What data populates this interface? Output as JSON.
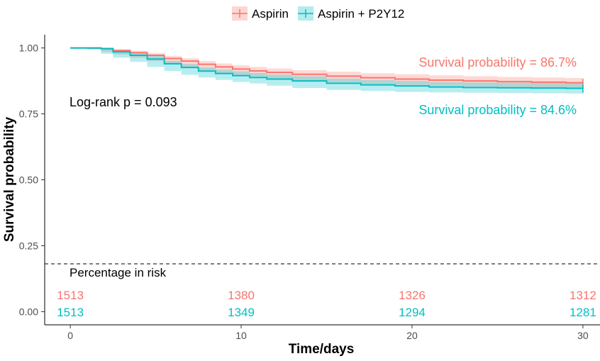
{
  "chart_data": {
    "type": "line",
    "xlabel": "Time/days",
    "ylabel": "Survival probability",
    "xlim": [
      -1.5,
      31
    ],
    "ylim": [
      -0.05,
      1.05
    ],
    "x_ticks": [
      0,
      10,
      20,
      30
    ],
    "y_ticks": [
      0.0,
      0.25,
      0.5,
      0.75,
      1.0
    ],
    "y_tick_labels": [
      "0.00",
      "0.25",
      "0.50",
      "0.75",
      "1.00"
    ],
    "grid": false,
    "legend_position": "top",
    "series": [
      {
        "name": "Aspirin",
        "color": "#F8766D",
        "band_color": "#F8766D",
        "x": [
          0,
          1,
          1.8,
          2.5,
          3.5,
          4.5,
          5.5,
          6.5,
          7.5,
          8.5,
          9.5,
          10.5,
          11.5,
          13,
          15,
          17,
          19,
          21,
          23,
          25,
          27,
          29,
          30
        ],
        "y": [
          1.0,
          1.0,
          0.998,
          0.99,
          0.982,
          0.972,
          0.96,
          0.95,
          0.938,
          0.928,
          0.92,
          0.913,
          0.907,
          0.9,
          0.893,
          0.887,
          0.882,
          0.878,
          0.875,
          0.872,
          0.87,
          0.868,
          0.867
        ],
        "lower": [
          1.0,
          1.0,
          0.996,
          0.985,
          0.975,
          0.963,
          0.95,
          0.939,
          0.926,
          0.915,
          0.906,
          0.898,
          0.892,
          0.884,
          0.876,
          0.87,
          0.864,
          0.86,
          0.857,
          0.854,
          0.852,
          0.85,
          0.849
        ],
        "upper": [
          1.0,
          1.0,
          1.0,
          0.995,
          0.989,
          0.981,
          0.97,
          0.961,
          0.95,
          0.941,
          0.934,
          0.928,
          0.922,
          0.916,
          0.91,
          0.904,
          0.9,
          0.896,
          0.893,
          0.89,
          0.888,
          0.886,
          0.885
        ],
        "final_label": "Survival probability = 86.7%",
        "risk": [
          1513,
          1380,
          1326,
          1312
        ]
      },
      {
        "name": "Aspirin + P2Y12",
        "color": "#00BFC4",
        "band_color": "#00BFC4",
        "x": [
          0,
          1,
          1.8,
          2.5,
          3.5,
          4.5,
          5.5,
          6.5,
          7.5,
          8.5,
          9.5,
          10.5,
          11.5,
          13,
          15,
          17,
          19,
          21,
          23,
          25,
          27,
          29,
          30
        ],
        "y": [
          1.0,
          1.0,
          0.997,
          0.985,
          0.972,
          0.958,
          0.94,
          0.926,
          0.912,
          0.903,
          0.895,
          0.888,
          0.882,
          0.875,
          0.866,
          0.86,
          0.856,
          0.852,
          0.85,
          0.849,
          0.848,
          0.847,
          0.846
        ],
        "lower": [
          1.0,
          1.0,
          0.994,
          0.978,
          0.963,
          0.947,
          0.928,
          0.913,
          0.898,
          0.888,
          0.879,
          0.871,
          0.865,
          0.857,
          0.848,
          0.841,
          0.837,
          0.833,
          0.831,
          0.83,
          0.829,
          0.828,
          0.827
        ],
        "upper": [
          1.0,
          1.0,
          1.0,
          0.992,
          0.981,
          0.969,
          0.952,
          0.939,
          0.926,
          0.918,
          0.911,
          0.905,
          0.899,
          0.893,
          0.884,
          0.879,
          0.875,
          0.871,
          0.869,
          0.868,
          0.867,
          0.866,
          0.865
        ],
        "final_label": "Survival probability = 84.6%",
        "risk": [
          1513,
          1349,
          1294,
          1281
        ]
      }
    ],
    "logrank_label": "Log-rank p = 0.093",
    "risk_table": {
      "title": "Percentage in risk",
      "times": [
        0,
        10,
        20,
        30
      ]
    }
  }
}
